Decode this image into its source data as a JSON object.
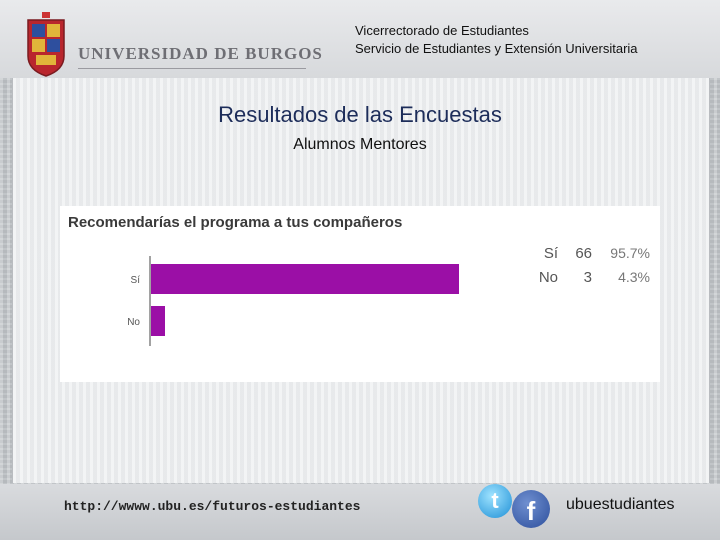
{
  "header": {
    "university": "UNIVERSIDAD DE BURGOS",
    "line1": "Vicerrectorado de Estudiantes",
    "line2": "Servicio de Estudiantes y Extensión Universitaria"
  },
  "slide": {
    "title": "Resultados de las Encuestas",
    "subtitle": "Alumnos Mentores"
  },
  "chart_data": {
    "type": "bar",
    "orientation": "horizontal",
    "title": "Recomendarías el programa a tus compañeros",
    "categories": [
      "Sí",
      "No"
    ],
    "values": [
      66,
      3
    ],
    "percentages": [
      "95.7%",
      "4.3%"
    ],
    "legend": [
      {
        "label": "Sí",
        "count": "66",
        "percent": "95.7%"
      },
      {
        "label": "No",
        "count": "3",
        "percent": "4.3%"
      }
    ],
    "bar_color": "#9b0fa6",
    "xlim": [
      0,
      100
    ],
    "grid": false,
    "legend_position": "top-right"
  },
  "footer": {
    "url": "http://wwww.ubu.es/futuros-estudiantes",
    "handle": "ubuestudiantes",
    "icons": [
      "twitter-icon",
      "facebook-icon"
    ]
  }
}
